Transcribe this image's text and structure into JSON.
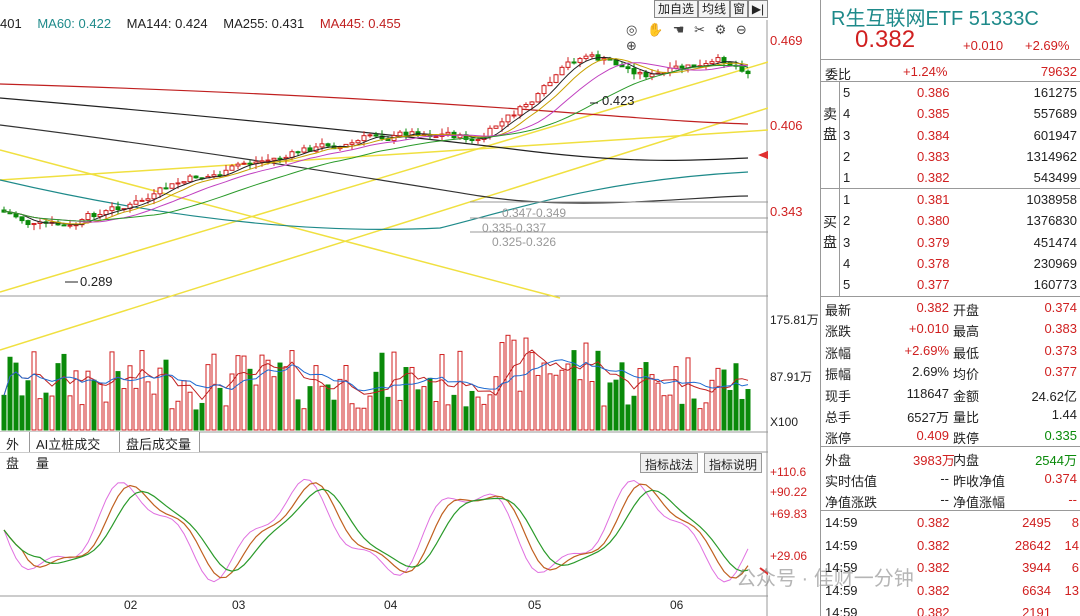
{
  "ma_bar": {
    "ma_cut": "401",
    "ma60": "MA60: 0.422",
    "ma144": "MA144: 0.424",
    "ma255": "MA255: 0.431",
    "ma445": "MA445: 0.455"
  },
  "toolbar": {
    "add_watch": "加自选",
    "ma_line": "均线",
    "window": "窗",
    "expand": "▶|"
  },
  "price_axis": [
    "0.469",
    "0.406",
    "0.343"
  ],
  "price_annotations": {
    "high": "0.423",
    "low": "0.289",
    "level1": "0.347-0.349",
    "level2": "0.335-0.337",
    "level3": "0.325-0.326"
  },
  "volume_axis": [
    "175.81万",
    "87.91万",
    "X100"
  ],
  "tabs": [
    "外盘",
    "AI立桩成交量",
    "盘后成交量"
  ],
  "indicator_buttons": [
    "指标战法",
    "指标说明"
  ],
  "osc_axis": [
    "+110.6",
    "+90.22",
    "+69.83",
    "+29.06"
  ],
  "months": [
    "02",
    "03",
    "04",
    "05",
    "06"
  ],
  "watermark": "公众号 · 佳财一分钟",
  "quote": {
    "title": "R生互联网ETF 51333C",
    "price": "0.382",
    "change": "+0.010",
    "change_pct": "+2.69%",
    "webi_label": "委比",
    "webi_pct": "+1.24%",
    "webi_val": "79632",
    "sell_label": "卖盘",
    "buy_label": "买盘",
    "sells": [
      {
        "n": "5",
        "p": "0.386",
        "v": "161275"
      },
      {
        "n": "4",
        "p": "0.385",
        "v": "557689"
      },
      {
        "n": "3",
        "p": "0.384",
        "v": "601947"
      },
      {
        "n": "2",
        "p": "0.383",
        "v": "1314962"
      },
      {
        "n": "1",
        "p": "0.382",
        "v": "543499"
      }
    ],
    "buys": [
      {
        "n": "1",
        "p": "0.381",
        "v": "1038958"
      },
      {
        "n": "2",
        "p": "0.380",
        "v": "1376830"
      },
      {
        "n": "3",
        "p": "0.379",
        "v": "451474"
      },
      {
        "n": "4",
        "p": "0.378",
        "v": "230969"
      },
      {
        "n": "5",
        "p": "0.377",
        "v": "160773"
      }
    ],
    "stats": [
      {
        "k1": "最新",
        "v1": "0.382",
        "k2": "开盘",
        "v2": "0.374"
      },
      {
        "k1": "涨跌",
        "v1": "+0.010",
        "k2": "最高",
        "v2": "0.383"
      },
      {
        "k1": "涨幅",
        "v1": "+2.69%",
        "k2": "最低",
        "v2": "0.373"
      },
      {
        "k1": "振幅",
        "v1": "2.69%",
        "k2": "均价",
        "v2": "0.377"
      },
      {
        "k1": "现手",
        "v1": "118647",
        "k2": "金额",
        "v2": "24.62亿"
      },
      {
        "k1": "总手",
        "v1": "6527万",
        "k2": "量比",
        "v2": "1.44"
      },
      {
        "k1": "涨停",
        "v1": "0.409",
        "k2": "跌停",
        "v2": "0.335"
      }
    ],
    "outer_label": "外盘",
    "outer_val": "3983万",
    "inner_label": "内盘",
    "inner_val": "2544万",
    "nav_rows": [
      {
        "k1": "实时估值",
        "v1": "--",
        "k2": "昨收净值",
        "v2": "0.374"
      },
      {
        "k1": "净值涨跌",
        "v1": "--",
        "k2": "净值涨幅",
        "v2": "--"
      }
    ],
    "ticks": [
      {
        "t": "14:59",
        "p": "0.382",
        "v": "2495",
        "x": "8"
      },
      {
        "t": "14:59",
        "p": "0.382",
        "v": "28642",
        "x": "14"
      },
      {
        "t": "14:59",
        "p": "0.382",
        "v": "3944",
        "x": "6"
      },
      {
        "t": "14:59",
        "p": "0.382",
        "v": "6634",
        "x": "13"
      },
      {
        "t": "14:59",
        "p": "0.382",
        "v": "2191",
        "x": ""
      }
    ]
  }
}
